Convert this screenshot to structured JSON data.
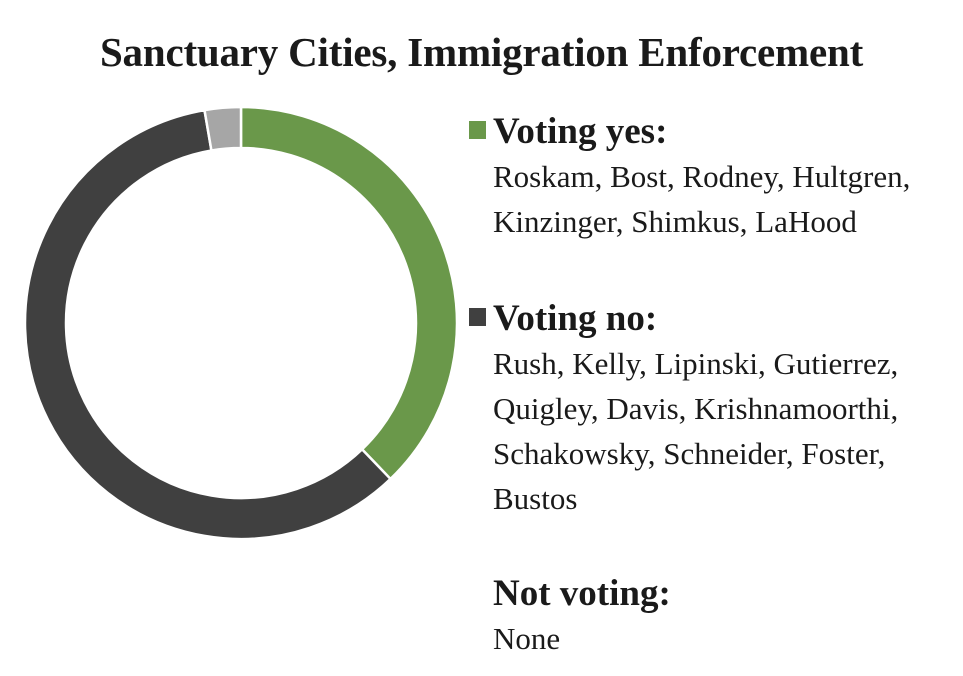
{
  "chart_data": {
    "type": "pie",
    "title": "Sanctuary Cities, Immigration Enforcement",
    "slices": [
      {
        "name": "Voting yes:",
        "value": 7,
        "color": "#6a984a",
        "members": [
          "Roskam, Bost, Rodney, Hultgren,",
          "Kinzinger, Shimkus, LaHood"
        ]
      },
      {
        "name": "Voting no:",
        "value": 11,
        "color": "#404040",
        "members": [
          "Rush, Kelly, Lipinski, Gutierrez,",
          "Quigley, Davis, Krishnamoorthi,",
          "Schakowsky, Schneider, Foster,",
          "Bustos"
        ]
      },
      {
        "name": "Not voting:",
        "value": 0.5,
        "color": "#a6a6a6",
        "members": [
          "None"
        ]
      }
    ]
  }
}
